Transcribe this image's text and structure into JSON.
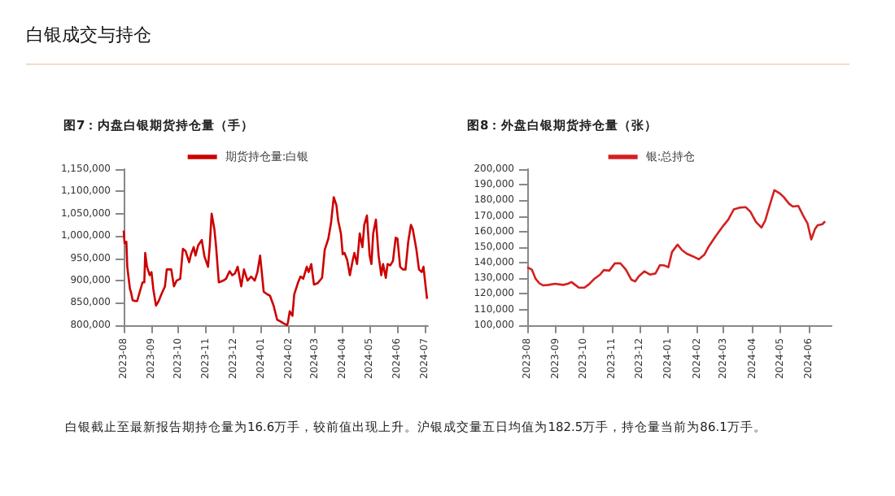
{
  "chart_data": [
    {
      "type": "line",
      "title": "图7：内盘白银期货持仓量（手）",
      "annotations": [
        "白银成交与持仓"
      ],
      "legend": "top",
      "xlim": [
        "2023-08-01",
        "2024-07-05"
      ],
      "xticks": [
        "2023-08",
        "2023-09",
        "2023-10",
        "2023-11",
        "2023-12",
        "2024-01",
        "2024-02",
        "2024-03",
        "2024-04",
        "2024-05",
        "2024-06",
        "2024-07"
      ],
      "ylim": [
        800000,
        1150000
      ],
      "yticks": [
        {
          "value": 800000,
          "label": "800,000"
        },
        {
          "value": 850000,
          "label": "850,000"
        },
        {
          "value": 900000,
          "label": "900,000"
        },
        {
          "value": 950000,
          "label": "950,000"
        },
        {
          "value": 1000000,
          "label": "1,000,000"
        },
        {
          "value": 1050000,
          "label": "1,050,000"
        },
        {
          "value": 1100000,
          "label": "1,100,000"
        },
        {
          "value": 1150000,
          "label": "1,150,000"
        }
      ],
      "series": [
        {
          "name": "期货持仓量:白银",
          "color": "#cc0000",
          "x": [
            "2023-08-01",
            "2023-08-02",
            "2023-08-04",
            "2023-08-05",
            "2023-08-08",
            "2023-08-09",
            "2023-08-11",
            "2023-08-14",
            "2023-08-16",
            "2023-08-19",
            "2023-08-22",
            "2023-08-24",
            "2023-08-25",
            "2023-08-27",
            "2023-08-30",
            "2023-09-01",
            "2023-09-03",
            "2023-09-06",
            "2023-09-09",
            "2023-09-12",
            "2023-09-16",
            "2023-09-18",
            "2023-09-23",
            "2023-09-26",
            "2023-09-29",
            "2023-10-03",
            "2023-10-06",
            "2023-10-09",
            "2023-10-13",
            "2023-10-15",
            "2023-10-18",
            "2023-10-20",
            "2023-10-23",
            "2023-10-27",
            "2023-10-30",
            "2023-11-03",
            "2023-11-05",
            "2023-11-07",
            "2023-11-10",
            "2023-11-12",
            "2023-11-15",
            "2023-11-20",
            "2023-11-23",
            "2023-11-27",
            "2023-11-30",
            "2023-12-03",
            "2023-12-06",
            "2023-12-10",
            "2023-12-13",
            "2023-12-17",
            "2023-12-21",
            "2023-12-25",
            "2023-12-28",
            "2023-12-31",
            "2024-01-04",
            "2024-01-08",
            "2024-01-11",
            "2024-01-15",
            "2024-01-19",
            "2024-01-22",
            "2024-01-26",
            "2024-01-30",
            "2024-01-31",
            "2024-02-02",
            "2024-02-05",
            "2024-02-07",
            "2024-02-11",
            "2024-02-14",
            "2024-02-17",
            "2024-02-21",
            "2024-02-23",
            "2024-02-26",
            "2024-02-29",
            "2024-03-04",
            "2024-03-09",
            "2024-03-12",
            "2024-03-16",
            "2024-03-19",
            "2024-03-22",
            "2024-03-25",
            "2024-03-27",
            "2024-03-30",
            "2024-04-01",
            "2024-04-03",
            "2024-04-06",
            "2024-04-09",
            "2024-04-12",
            "2024-04-14",
            "2024-04-17",
            "2024-04-20",
            "2024-04-23",
            "2024-04-25",
            "2024-04-28",
            "2024-05-01",
            "2024-05-03",
            "2024-05-05",
            "2024-05-08",
            "2024-05-11",
            "2024-05-14",
            "2024-05-16",
            "2024-05-19",
            "2024-05-21",
            "2024-05-24",
            "2024-05-27",
            "2024-05-30",
            "2024-06-01",
            "2024-06-04",
            "2024-06-07",
            "2024-06-10",
            "2024-06-13",
            "2024-06-16",
            "2024-06-18",
            "2024-06-22",
            "2024-06-25",
            "2024-06-28",
            "2024-06-30",
            "2024-07-02",
            "2024-07-04"
          ],
          "values": [
            1012000,
            984000,
            987000,
            931000,
            881000,
            875000,
            856000,
            854000,
            854000,
            875000,
            896000,
            896000,
            962000,
            931000,
            912000,
            919000,
            881000,
            844000,
            854000,
            869000,
            887000,
            925000,
            925000,
            887000,
            900000,
            904000,
            971000,
            966000,
            941000,
            959000,
            975000,
            956000,
            979000,
            991000,
            954000,
            931000,
            981000,
            1050000,
            1016000,
            975000,
            896000,
            900000,
            904000,
            921000,
            912000,
            916000,
            931000,
            887000,
            925000,
            900000,
            909000,
            900000,
            919000,
            956000,
            875000,
            869000,
            866000,
            844000,
            812000,
            809000,
            804000,
            800000,
            806000,
            831000,
            821000,
            869000,
            894000,
            909000,
            904000,
            931000,
            919000,
            937000,
            891000,
            894000,
            906000,
            969000,
            994000,
            1029000,
            1087000,
            1069000,
            1034000,
            1006000,
            959000,
            962000,
            946000,
            912000,
            944000,
            962000,
            937000,
            1006000,
            975000,
            1025000,
            1046000,
            956000,
            937000,
            1006000,
            1037000,
            956000,
            912000,
            937000,
            906000,
            937000,
            934000,
            944000,
            996000,
            994000,
            931000,
            925000,
            925000,
            987000,
            1025000,
            1016000,
            971000,
            925000,
            919000,
            931000,
            894000,
            859000
          ]
        }
      ]
    },
    {
      "type": "line",
      "title": "图8：外盘白银期货持仓量（张）",
      "annotations": [
        "白银截止至最新报告期持仓量为16.6万手，较前值出现上升。沪银成交量五日均值为182.5万手，持仓量当前为86.1万手。"
      ],
      "legend": "top",
      "xlim": [
        "2023-08-01",
        "2024-06-26"
      ],
      "xticks": [
        "2023-08",
        "2023-09",
        "2023-10",
        "2023-11",
        "2023-12",
        "2024-01",
        "2024-02",
        "2024-03",
        "2024-04",
        "2024-05",
        "2024-06"
      ],
      "ylim": [
        100000,
        200000
      ],
      "yticks": [
        {
          "value": 100000,
          "label": "100,000"
        },
        {
          "value": 110000,
          "label": "110,000"
        },
        {
          "value": 120000,
          "label": "120,000"
        },
        {
          "value": 130000,
          "label": "130,000"
        },
        {
          "value": 140000,
          "label": "140,000"
        },
        {
          "value": 150000,
          "label": "150,000"
        },
        {
          "value": 160000,
          "label": "160,000"
        },
        {
          "value": 170000,
          "label": "170,000"
        },
        {
          "value": 180000,
          "label": "180,000"
        },
        {
          "value": 190000,
          "label": "190,000"
        },
        {
          "value": 200000,
          "label": "200,000"
        }
      ],
      "series": [
        {
          "name": "银:总持仓",
          "color": "#d42020",
          "x": [
            "2023-08-01",
            "2023-08-06",
            "2023-08-10",
            "2023-08-14",
            "2023-08-18",
            "2023-08-24",
            "2023-08-31",
            "2023-09-09",
            "2023-09-14",
            "2023-09-18",
            "2023-09-22",
            "2023-09-26",
            "2023-10-02",
            "2023-10-07",
            "2023-10-13",
            "2023-10-19",
            "2023-10-23",
            "2023-10-29",
            "2023-11-04",
            "2023-11-10",
            "2023-11-16",
            "2023-11-22",
            "2023-11-26",
            "2023-11-30",
            "2023-12-06",
            "2023-12-12",
            "2023-12-18",
            "2023-12-23",
            "2023-12-28",
            "2024-01-01",
            "2024-01-05",
            "2024-01-11",
            "2024-01-16",
            "2024-01-21",
            "2024-01-28",
            "2024-02-03",
            "2024-02-09",
            "2024-02-14",
            "2024-02-21",
            "2024-03-01",
            "2024-03-06",
            "2024-03-12",
            "2024-03-18",
            "2024-03-25",
            "2024-03-30",
            "2024-04-05",
            "2024-04-11",
            "2024-04-15",
            "2024-04-19",
            "2024-04-25",
            "2024-05-01",
            "2024-05-05",
            "2024-05-11",
            "2024-05-15",
            "2024-05-21",
            "2024-05-26",
            "2024-05-31",
            "2024-06-04",
            "2024-06-08",
            "2024-06-11",
            "2024-06-16",
            "2024-06-19"
          ],
          "values": [
            137100,
            135600,
            129800,
            126900,
            125500,
            125800,
            126500,
            125800,
            126500,
            127600,
            125800,
            124000,
            124000,
            126200,
            129800,
            132400,
            135300,
            134900,
            139600,
            139600,
            135600,
            129100,
            128000,
            131300,
            134500,
            132400,
            133100,
            138500,
            138200,
            137100,
            146900,
            151600,
            148000,
            145800,
            144000,
            142200,
            145100,
            150500,
            156700,
            164000,
            167600,
            174200,
            175300,
            175600,
            172700,
            166200,
            162500,
            166900,
            174900,
            186500,
            184400,
            182200,
            177800,
            176000,
            176400,
            170500,
            165100,
            154900,
            161500,
            164000,
            164700,
            166500
          ]
        }
      ]
    }
  ]
}
